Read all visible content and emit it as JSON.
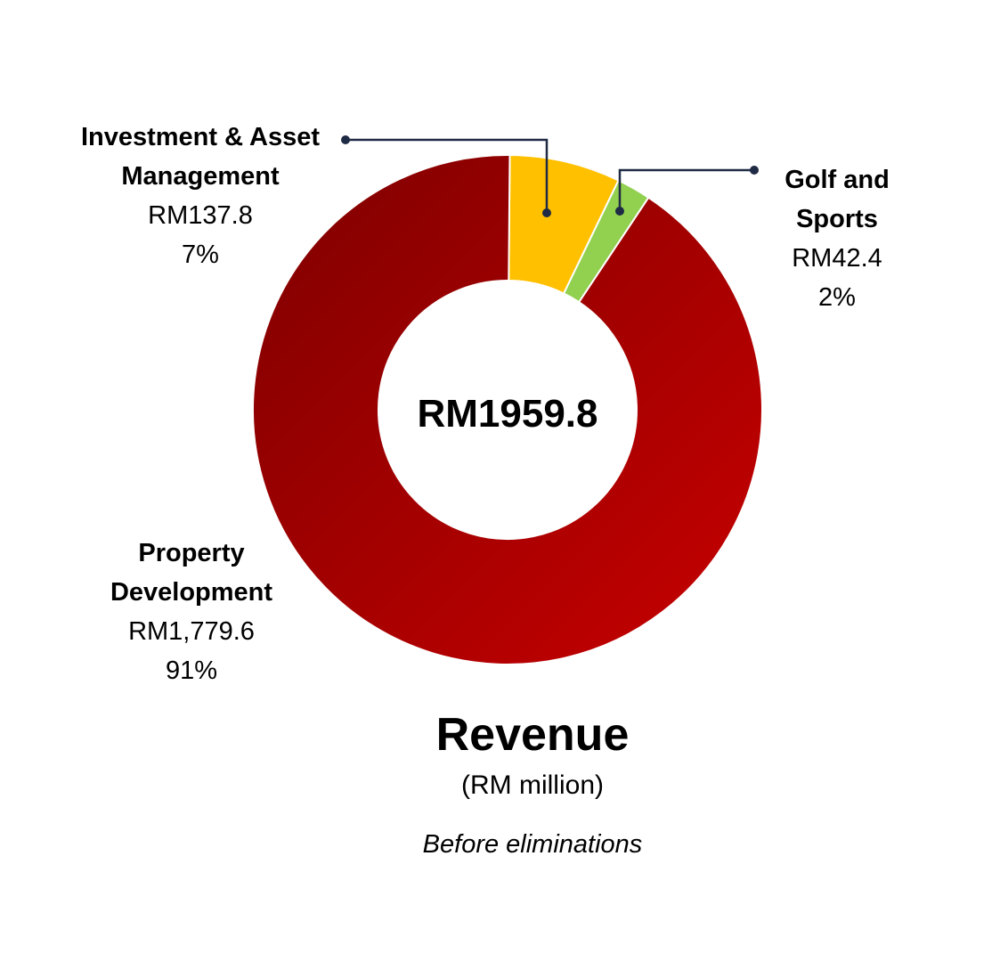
{
  "chart_data": {
    "type": "pie",
    "title": "Revenue",
    "subtitle": "(RM million)",
    "note": "Before eliminations",
    "center_label": "RM1959.8",
    "donut": true,
    "slices": [
      {
        "name_lines": [
          "Investment & Asset",
          "Management"
        ],
        "value_label": "RM137.8",
        "value": 137.8,
        "percent_label": "7%",
        "color": "#FFC000"
      },
      {
        "name_lines": [
          "Golf and",
          "Sports"
        ],
        "value_label": "RM42.4",
        "value": 42.4,
        "percent_label": "2%",
        "color": "#92D050"
      },
      {
        "name_lines": [
          "Property",
          "Development"
        ],
        "value_label": "RM1,779.6",
        "value": 1779.6,
        "percent_label": "91%",
        "color": "#B00000"
      }
    ]
  }
}
